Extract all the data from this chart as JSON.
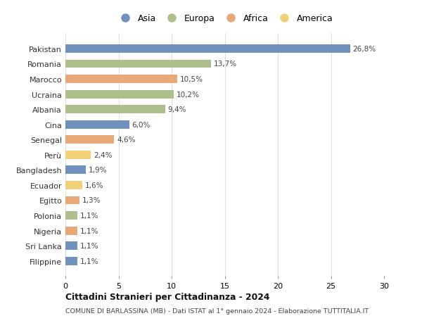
{
  "countries": [
    "Pakistan",
    "Romania",
    "Marocco",
    "Ucraina",
    "Albania",
    "Cina",
    "Senegal",
    "Perù",
    "Bangladesh",
    "Ecuador",
    "Egitto",
    "Polonia",
    "Nigeria",
    "Sri Lanka",
    "Filippine"
  ],
  "values": [
    26.8,
    13.7,
    10.5,
    10.2,
    9.4,
    6.0,
    4.6,
    2.4,
    1.9,
    1.6,
    1.3,
    1.1,
    1.1,
    1.1,
    1.1
  ],
  "labels": [
    "26,8%",
    "13,7%",
    "10,5%",
    "10,2%",
    "9,4%",
    "6,0%",
    "4,6%",
    "2,4%",
    "1,9%",
    "1,6%",
    "1,3%",
    "1,1%",
    "1,1%",
    "1,1%",
    "1,1%"
  ],
  "continents": [
    "Asia",
    "Europa",
    "Africa",
    "Europa",
    "Europa",
    "Asia",
    "Africa",
    "America",
    "Asia",
    "America",
    "Africa",
    "Europa",
    "Africa",
    "Asia",
    "Asia"
  ],
  "continent_colors": {
    "Asia": "#7090be",
    "Europa": "#adbf8c",
    "Africa": "#e8a87a",
    "America": "#f2d07a"
  },
  "legend_order": [
    "Asia",
    "Europa",
    "Africa",
    "America"
  ],
  "title": "Cittadini Stranieri per Cittadinanza - 2024",
  "subtitle": "COMUNE DI BARLASSINA (MB) - Dati ISTAT al 1° gennaio 2024 - Elaborazione TUTTITALIA.IT",
  "xlim": [
    0,
    30
  ],
  "xticks": [
    0,
    5,
    10,
    15,
    20,
    25,
    30
  ],
  "bg_color": "#ffffff",
  "grid_color": "#e0e0e0",
  "bar_height": 0.55
}
